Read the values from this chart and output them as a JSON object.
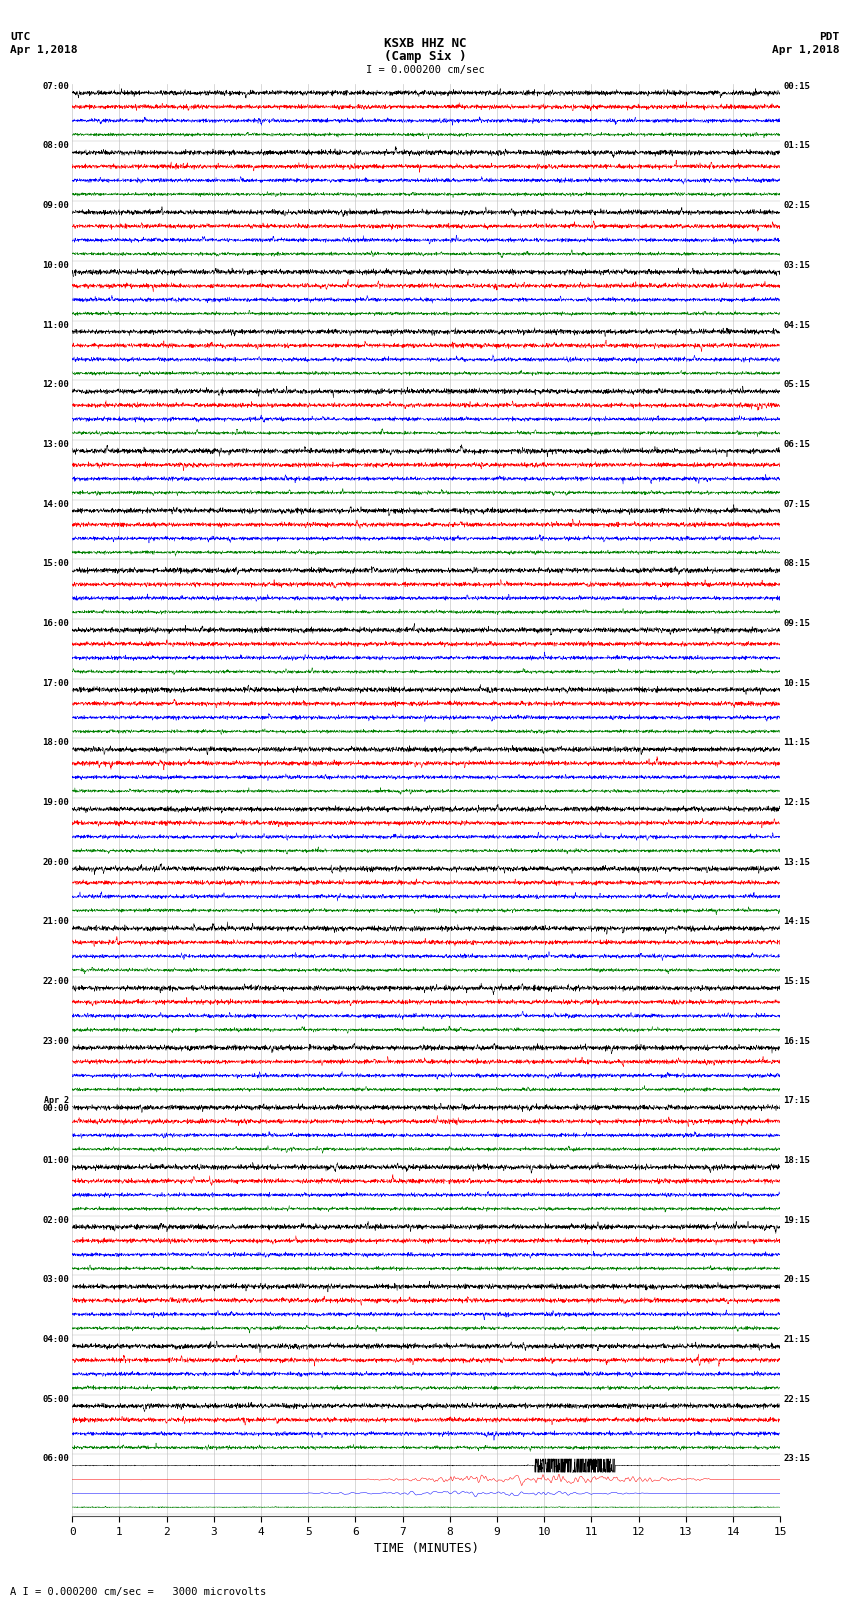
{
  "title_line1": "KSXB HHZ NC",
  "title_line2": "(Camp Six )",
  "scale_text": "I = 0.000200 cm/sec",
  "bottom_text": "A I = 0.000200 cm/sec =   3000 microvolts",
  "xlabel": "TIME (MINUTES)",
  "utc_label1": "UTC",
  "utc_label2": "Apr 1,2018",
  "pdt_label1": "PDT",
  "pdt_label2": "Apr 1,2018",
  "left_times_utc": [
    "07:00",
    "08:00",
    "09:00",
    "10:00",
    "11:00",
    "12:00",
    "13:00",
    "14:00",
    "15:00",
    "16:00",
    "17:00",
    "18:00",
    "19:00",
    "20:00",
    "21:00",
    "22:00",
    "23:00",
    "Apr 2\n00:00",
    "01:00",
    "02:00",
    "03:00",
    "04:00",
    "05:00",
    "06:00"
  ],
  "right_times_pdt": [
    "00:15",
    "01:15",
    "02:15",
    "03:15",
    "04:15",
    "05:15",
    "06:15",
    "07:15",
    "08:15",
    "09:15",
    "10:15",
    "11:15",
    "12:15",
    "13:15",
    "14:15",
    "15:15",
    "16:15",
    "17:15",
    "18:15",
    "19:15",
    "20:15",
    "21:15",
    "22:15",
    "23:15"
  ],
  "n_rows": 24,
  "traces_per_row": 4,
  "trace_colors": [
    "black",
    "red",
    "blue",
    "green"
  ],
  "noise_amplitude": [
    0.08,
    0.07,
    0.06,
    0.05
  ],
  "background_color": "white",
  "grid_color": "#bbbbbb",
  "n_minutes": 15,
  "samples_per_minute": 200,
  "figsize": [
    8.5,
    16.13
  ],
  "dpi": 100,
  "xmin": 0,
  "xmax": 15,
  "xticks": [
    0,
    1,
    2,
    3,
    4,
    5,
    6,
    7,
    8,
    9,
    10,
    11,
    12,
    13,
    14,
    15
  ]
}
